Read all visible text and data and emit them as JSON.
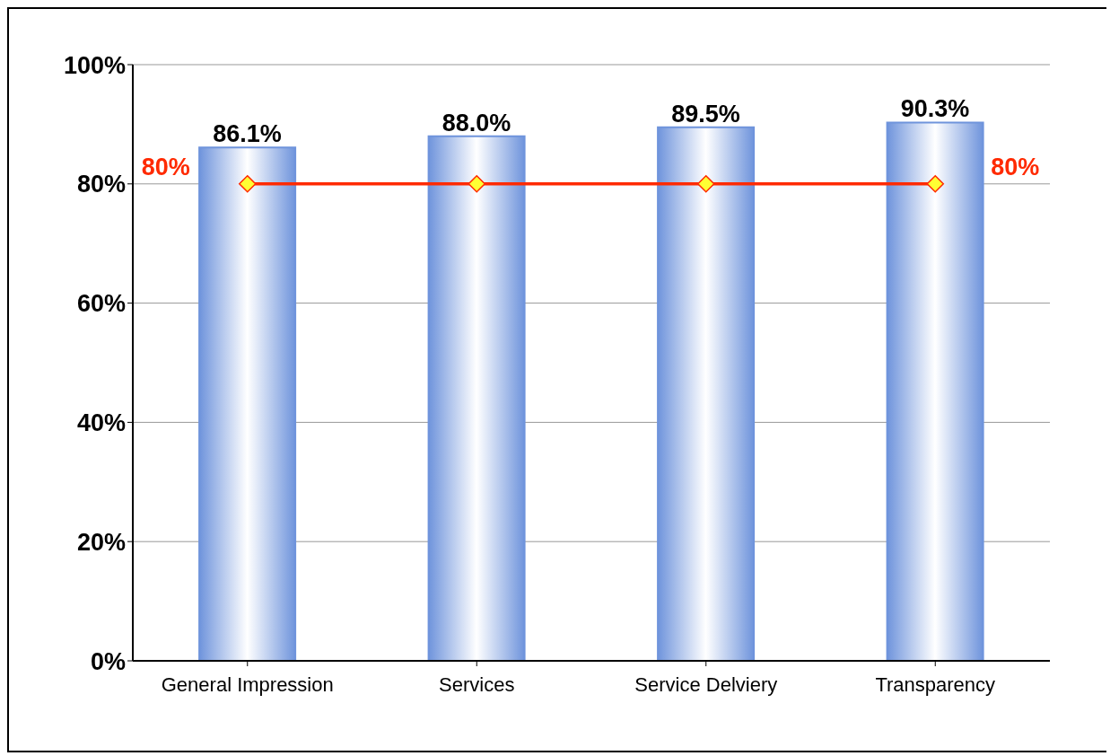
{
  "chart_data": {
    "type": "bar",
    "categories": [
      "General Impression",
      "Services",
      "Service Delviery",
      "Transparency"
    ],
    "series": [
      {
        "color": "#6f94dc",
        "values": [
          86.1,
          88.0,
          89.5,
          90.3
        ],
        "value_labels": [
          "86.1%",
          "88.0%",
          "89.5%",
          "90.3%"
        ]
      },
      {
        "type": "line",
        "color": "#ff2a00",
        "values": [
          80,
          80,
          80,
          80
        ],
        "marker": "diamond",
        "line_style": "solid"
      }
    ],
    "ylim": [
      0,
      100
    ],
    "yticks": [
      {
        "value": 0,
        "label": "0%"
      },
      {
        "value": 20,
        "label": "20%"
      },
      {
        "value": 40,
        "label": "40%"
      },
      {
        "value": 60,
        "label": "60%"
      },
      {
        "value": 80,
        "label": "80%"
      },
      {
        "value": 100,
        "label": "100%"
      }
    ],
    "grid": "y",
    "annotations": [
      {
        "text": "80%",
        "x": "General Impression",
        "y": 80
      },
      {
        "text": "80%",
        "x": "Transparency",
        "y": 80
      }
    ]
  }
}
